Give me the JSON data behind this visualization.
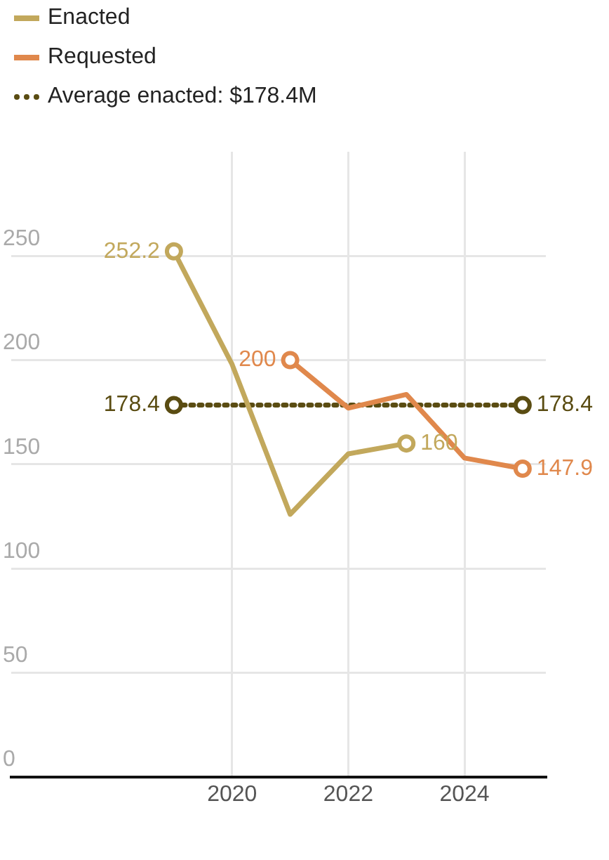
{
  "chart_data": {
    "type": "line",
    "xlim": [
      2016.2,
      2025.4
    ],
    "xticks": [
      2020,
      2022,
      2024
    ],
    "ylim": [
      0,
      300
    ],
    "yticks": [
      0,
      50,
      100,
      150,
      200,
      250
    ],
    "grid": true,
    "legend": "top left",
    "series": [
      {
        "name": "Enacted",
        "color": "#c2a85c",
        "x": [
          2019,
          2020,
          2021,
          2022,
          2023
        ],
        "values": [
          252.2,
          198,
          126,
          155,
          160
        ],
        "value_labels": [
          "252.2",
          null,
          null,
          null,
          "160"
        ]
      },
      {
        "name": "Requested",
        "color": "#e0884c",
        "x": [
          2021,
          2022,
          2023,
          2024,
          2025
        ],
        "values": [
          200,
          177,
          183.5,
          153,
          147.9
        ],
        "value_labels": [
          "200",
          null,
          null,
          null,
          "147.9"
        ]
      },
      {
        "name": "Average enacted: $178.4M",
        "color": "#5a4c12",
        "line_style": "dotted",
        "marker": "circle",
        "x": [
          2019,
          2025
        ],
        "values": [
          178.4,
          178.4
        ],
        "value_labels": [
          "178.4",
          "178.4"
        ]
      }
    ]
  }
}
